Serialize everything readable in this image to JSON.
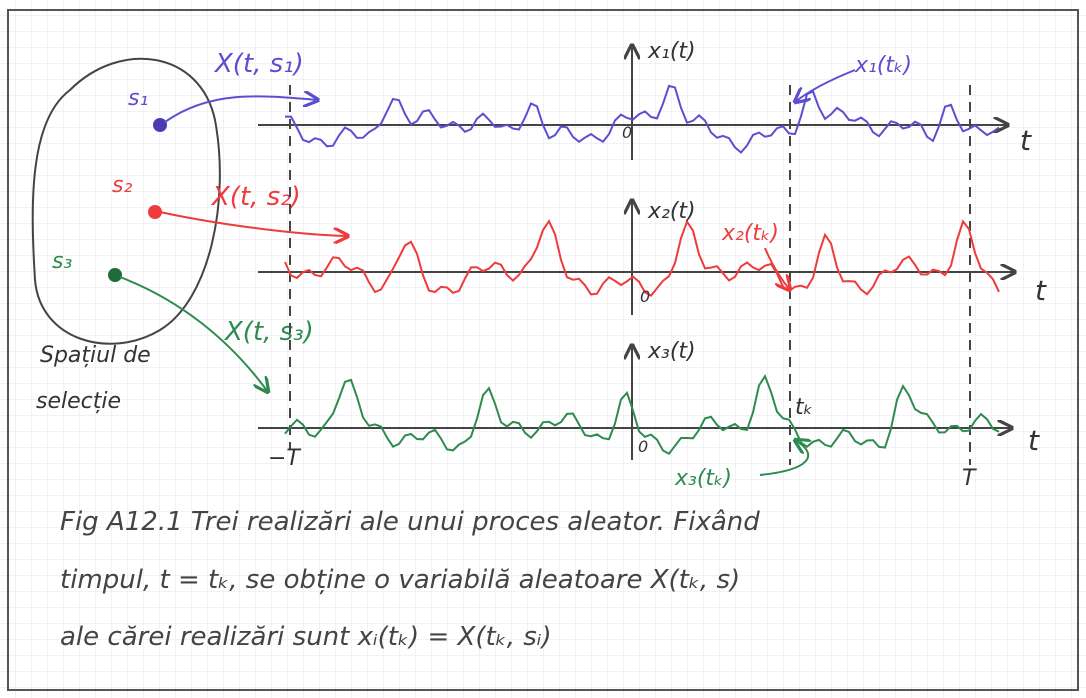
{
  "sample_space": {
    "label": [
      "Spațiul de",
      "selecție"
    ],
    "points": [
      "s₁",
      "s₂",
      "s₃"
    ]
  },
  "processes": [
    {
      "arrow_label": "X(t, s₁)",
      "axis_label": "x₁(t)",
      "sample_label": "x₁(tₖ)",
      "origin": "0",
      "t_label": "t"
    },
    {
      "arrow_label": "X(t, s₂)",
      "axis_label": "x₂(t)",
      "sample_label": "x₂(tₖ)",
      "origin": "0",
      "t_label": "t"
    },
    {
      "arrow_label": "X(t, s₃)",
      "axis_label": "x₃(t)",
      "sample_label": "x₃(tₖ)",
      "origin": "0",
      "t_label": "t"
    }
  ],
  "time_marks": {
    "minus_T": "−T",
    "T": "T",
    "tk": "tₖ"
  },
  "caption": [
    "Fig A12.1 Trei realizări ale unui proces aleator. Fixând",
    "timpul, t = tₖ, se obține o variabilă aleatoare X(tₖ, s)",
    "ale cărei realizări sunt xᵢ(tₖ) = X(tₖ, sᵢ)"
  ]
}
